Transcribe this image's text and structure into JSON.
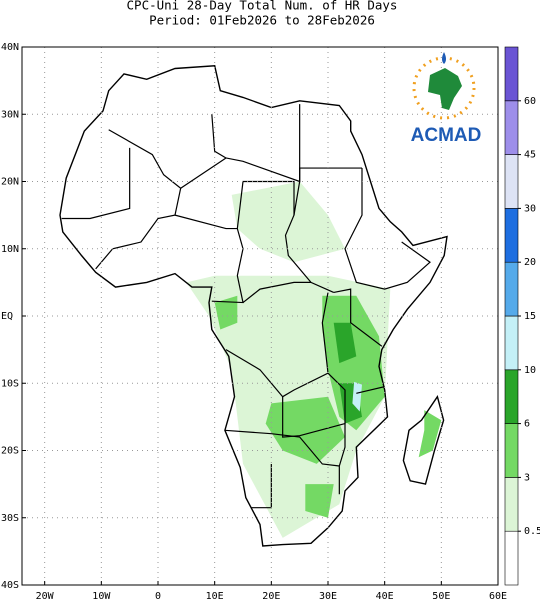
{
  "title": "CPC-Uni 28-Day Total Num. of HR Days",
  "subtitle": "Period: 01Feb2026 to 28Feb2026",
  "lon_range": [
    -24,
    60
  ],
  "lat_range": [
    -40,
    40
  ],
  "lon_ticks": [
    {
      "value": -20,
      "label": "20W"
    },
    {
      "value": -10,
      "label": "10W"
    },
    0,
    {
      "value": 10,
      "label": "10E"
    },
    {
      "value": 20,
      "label": "20E"
    },
    {
      "value": 30,
      "label": "30E"
    },
    {
      "value": 40,
      "label": "40E"
    },
    {
      "value": 50,
      "label": "50E"
    },
    {
      "value": 60,
      "label": "60E"
    }
  ],
  "lat_ticks": [
    {
      "value": 40,
      "label": "40N"
    },
    {
      "value": 30,
      "label": "30N"
    },
    {
      "value": 20,
      "label": "20N"
    },
    {
      "value": 10,
      "label": "10N"
    },
    {
      "value": 0,
      "label": "EQ"
    },
    {
      "value": -10,
      "label": "10S"
    },
    {
      "value": -20,
      "label": "20S"
    },
    {
      "value": -30,
      "label": "30S"
    },
    {
      "value": -40,
      "label": "40S"
    }
  ],
  "colorbar": {
    "levels": [
      0.5,
      3,
      6,
      10,
      15,
      20,
      30,
      45,
      60
    ],
    "colors": [
      "#ffffff",
      "#dcf5d6",
      "#74d964",
      "#2aa52a",
      "#c4f0f7",
      "#55aaea",
      "#1e6ee0",
      "#dde3f5",
      "#9d8eea",
      "#6a54d4"
    ]
  },
  "logo": "ACMAD"
}
